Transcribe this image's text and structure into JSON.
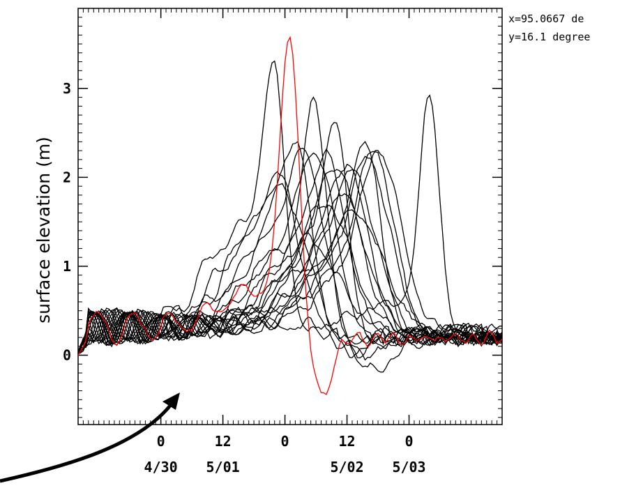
{
  "chart_data": {
    "type": "line",
    "title": "",
    "xlabel": "",
    "ylabel": "surface elevation (m)",
    "x_unit": "hours",
    "xlim": [
      -16,
      66
    ],
    "ylim": [
      -0.78,
      3.9
    ],
    "annotation_lines": [
      "x=95.0667 de",
      "y=16.1 degree"
    ],
    "x_ticks": [
      {
        "value": 0,
        "hour_label": "0",
        "date_label": "4/30"
      },
      {
        "value": 12,
        "hour_label": "12",
        "date_label": "5/01"
      },
      {
        "value": 24,
        "hour_label": "0",
        "date_label": ""
      },
      {
        "value": 36,
        "hour_label": "12",
        "date_label": "5/02"
      },
      {
        "value": 48,
        "hour_label": "0",
        "date_label": "5/03"
      }
    ],
    "y_ticks": [
      {
        "value": 0,
        "label": "0"
      },
      {
        "value": 1,
        "label": "1"
      },
      {
        "value": 2,
        "label": "2"
      },
      {
        "value": 3,
        "label": "3"
      }
    ],
    "highlight_color": "#ff0000",
    "line_color": "#000000",
    "arrow_color": "#000000",
    "series": [
      {
        "highlight": true,
        "peak_x": 25,
        "peak_y": 3.88,
        "width": 2.5,
        "trough_y": -0.78,
        "pre_level": 0.75
      },
      {
        "peak_x": 22,
        "peak_y": 3.82,
        "width": 3,
        "trough_y": -0.1,
        "pre_level": 1.5
      },
      {
        "peak_x": 30,
        "peak_y": 3.25,
        "width": 3.2,
        "trough_y": -0.3,
        "pre_level": 1.2
      },
      {
        "peak_x": 52,
        "peak_y": 3.1,
        "width": 2.6,
        "trough_y": -0.1,
        "pre_level": 0.6
      },
      {
        "peak_x": 34,
        "peak_y": 3.1,
        "width": 3.2,
        "trough_y": -0.2,
        "pre_level": 1.3
      },
      {
        "peak_x": 27,
        "peak_y": 2.95,
        "width": 4,
        "trough_y": -0.3,
        "pre_level": 1.7
      },
      {
        "peak_x": 40,
        "peak_y": 2.8,
        "width": 4,
        "trough_y": -0.15,
        "pre_level": 1.2
      },
      {
        "peak_x": 29,
        "peak_y": 2.7,
        "width": 5,
        "trough_y": -0.5,
        "pre_level": 1.4
      },
      {
        "peak_x": 31,
        "peak_y": 2.68,
        "width": 5,
        "trough_y": -0.2,
        "pre_level": 1.3
      },
      {
        "peak_x": 33,
        "peak_y": 2.6,
        "width": 5,
        "trough_y": -0.1,
        "pre_level": 1.2
      },
      {
        "peak_x": 42,
        "peak_y": 2.6,
        "width": 5,
        "trough_y": -0.1,
        "pre_level": 1.0
      },
      {
        "peak_x": 43,
        "peak_y": 2.55,
        "width": 5.5,
        "trough_y": -0.05,
        "pre_level": 0.9
      },
      {
        "peak_x": 41,
        "peak_y": 2.5,
        "width": 5.5,
        "trough_y": -0.1,
        "pre_level": 1.0
      },
      {
        "peak_x": 37,
        "peak_y": 2.45,
        "width": 5.5,
        "trough_y": -0.2,
        "pre_level": 1.1
      },
      {
        "peak_x": 24,
        "peak_y": 2.4,
        "width": 5,
        "trough_y": -0.2,
        "pre_level": 1.3
      },
      {
        "peak_x": 35,
        "peak_y": 2.4,
        "width": 6,
        "trough_y": -0.15,
        "pre_level": 1.0
      },
      {
        "peak_x": 38,
        "peak_y": 2.3,
        "width": 6,
        "trough_y": -0.1,
        "pre_level": 0.9
      },
      {
        "peak_x": 25,
        "peak_y": 2.1,
        "width": 6,
        "trough_y": -0.3,
        "pre_level": 1.0
      },
      {
        "peak_x": 36,
        "peak_y": 2.0,
        "width": 6,
        "trough_y": -0.05,
        "pre_level": 0.8
      },
      {
        "peak_x": 33,
        "peak_y": 1.9,
        "width": 6.5,
        "trough_y": -0.05,
        "pre_level": 0.8
      },
      {
        "peak_x": 39,
        "peak_y": 1.8,
        "width": 7,
        "trough_y": -0.1,
        "pre_level": 0.8
      },
      {
        "peak_x": 30,
        "peak_y": 1.4,
        "width": 7,
        "trough_y": -0.05,
        "pre_level": 0.6
      }
    ]
  }
}
